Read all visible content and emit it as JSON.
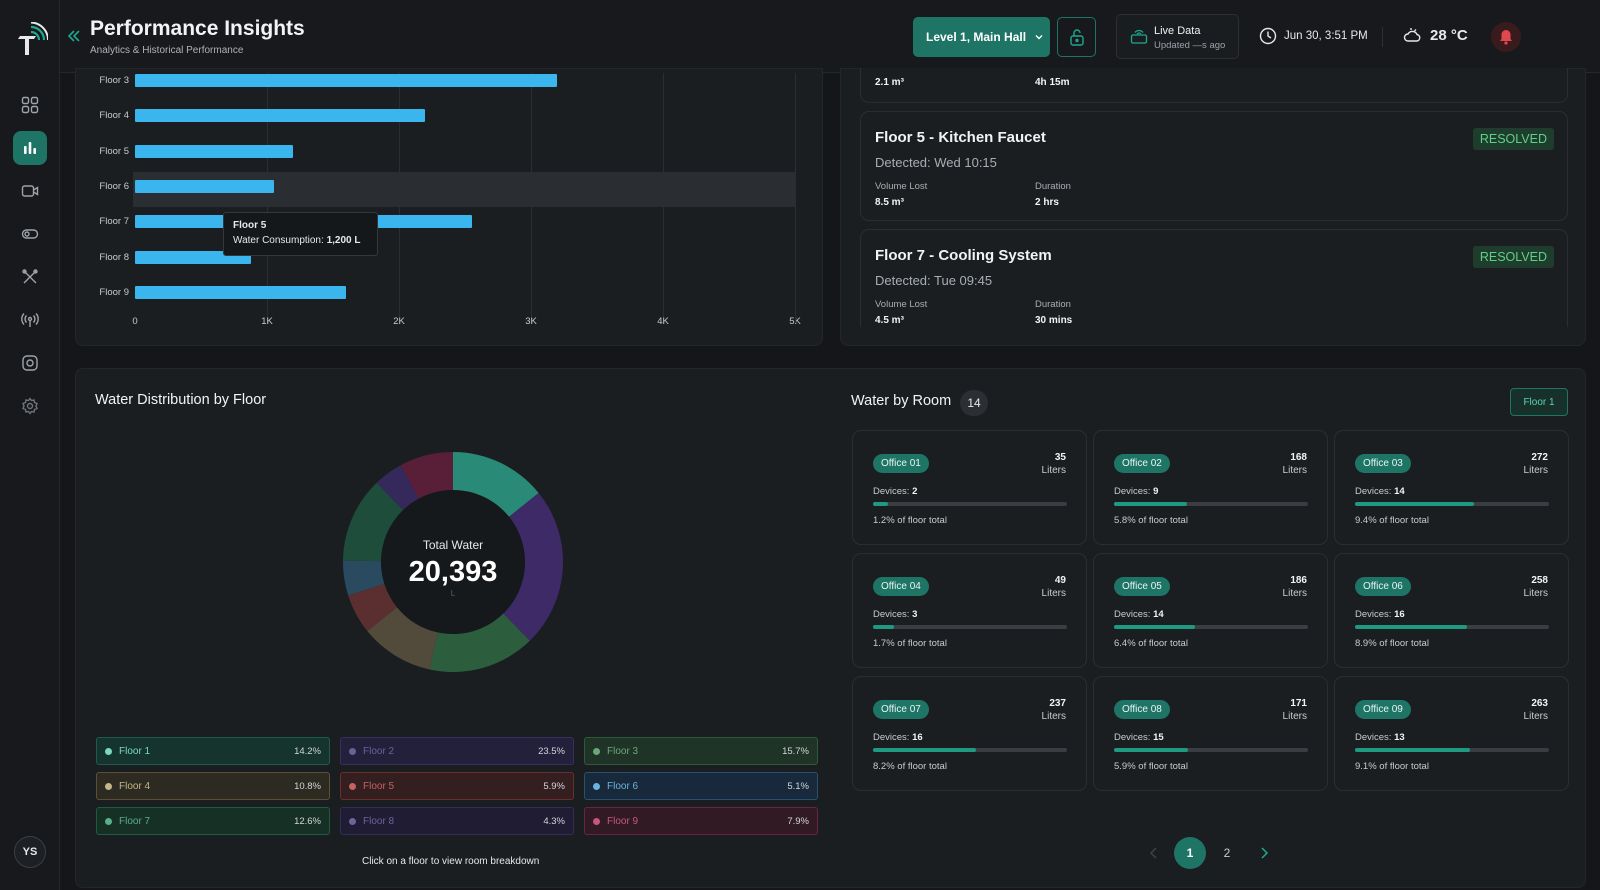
{
  "header": {
    "title": "Performance Insights",
    "subtitle": "Analytics & Historical Performance",
    "location": "Level 1, Main Hall",
    "live_title": "Live Data",
    "live_updated": "Updated —s ago",
    "datetime": "Jun 30, 3:51 PM",
    "temperature": "28 °C"
  },
  "user": {
    "initials": "YS"
  },
  "chart_data": {
    "type": "bar",
    "orientation": "horizontal",
    "categories": [
      "Floor 3",
      "Floor 4",
      "Floor 5",
      "Floor 6",
      "Floor 7",
      "Floor 8",
      "Floor 9"
    ],
    "values": [
      3200,
      2200,
      1200,
      1050,
      2550,
      880,
      1600
    ],
    "xticks": [
      "0",
      "1K",
      "2K",
      "3K",
      "4K",
      "5K"
    ],
    "xlim": [
      0,
      5000
    ],
    "tooltip": {
      "title": "Floor 5",
      "label": "Water Consumption:",
      "value": "1,200 L"
    },
    "color": "#3ab5ee"
  },
  "leaks": {
    "top_partial": {
      "volume": "2.1 m³",
      "duration": "4h 15m"
    },
    "items": [
      {
        "name": "Floor 5 - Kitchen Faucet",
        "detected": "Detected: Wed 10:15",
        "volume_label": "Volume Lost",
        "volume": "8.5 m³",
        "duration_label": "Duration",
        "duration": "2 hrs",
        "status": "RESOLVED"
      },
      {
        "name": "Floor 7 - Cooling System",
        "detected": "Detected: Tue 09:45",
        "volume_label": "Volume Lost",
        "volume": "4.5 m³",
        "duration_label": "Duration",
        "duration": "30 mins",
        "status": "RESOLVED"
      }
    ]
  },
  "distribution": {
    "title": "Water Distribution by Floor",
    "center_label": "Total Water",
    "total": "20,393",
    "unit": "L",
    "hint": "Click on a floor to view room breakdown",
    "floors": [
      {
        "name": "Floor 1",
        "pct": "14.2%",
        "color": "#1f7c6d"
      },
      {
        "name": "Floor 2",
        "pct": "23.5%",
        "color": "#3e2a63"
      },
      {
        "name": "Floor 3",
        "pct": "15.7%",
        "color": "#2c6040"
      },
      {
        "name": "Floor 4",
        "pct": "10.8%",
        "color": "#5b5440"
      },
      {
        "name": "Floor 5",
        "pct": "5.9%",
        "color": "#6a2e2e"
      },
      {
        "name": "Floor 6",
        "pct": "5.1%",
        "color": "#244a62"
      },
      {
        "name": "Floor 7",
        "pct": "12.6%",
        "color": "#1d4f3c"
      },
      {
        "name": "Floor 8",
        "pct": "4.3%",
        "color": "#322a52"
      },
      {
        "name": "Floor 9",
        "pct": "7.9%",
        "color": "#5a1f35"
      }
    ]
  },
  "rooms": {
    "title": "Water by Room",
    "count": "14",
    "floor_filter": "Floor 1",
    "liters_label": "Liters",
    "devices_label": "Devices:",
    "items": [
      {
        "name": "Office 01",
        "liters": "35",
        "devices": "2",
        "share": "1.2% of floor total",
        "share_value": 1.2
      },
      {
        "name": "Office 02",
        "liters": "168",
        "devices": "9",
        "share": "5.8% of floor total",
        "share_value": 5.8
      },
      {
        "name": "Office 03",
        "liters": "272",
        "devices": "14",
        "share": "9.4% of floor total",
        "share_value": 9.4
      },
      {
        "name": "Office 04",
        "liters": "49",
        "devices": "3",
        "share": "1.7% of floor total",
        "share_value": 1.7
      },
      {
        "name": "Office 05",
        "liters": "186",
        "devices": "14",
        "share": "6.4% of floor total",
        "share_value": 6.4
      },
      {
        "name": "Office 06",
        "liters": "258",
        "devices": "16",
        "share": "8.9% of floor total",
        "share_value": 8.9
      },
      {
        "name": "Office 07",
        "liters": "237",
        "devices": "16",
        "share": "8.2% of floor total",
        "share_value": 8.2
      },
      {
        "name": "Office 08",
        "liters": "171",
        "devices": "15",
        "share": "5.9% of floor total",
        "share_value": 5.9
      },
      {
        "name": "Office 09",
        "liters": "263",
        "devices": "13",
        "share": "9.1% of floor total",
        "share_value": 9.1
      }
    ]
  },
  "pagination": {
    "pages": [
      "1",
      "2"
    ],
    "current": "1"
  }
}
